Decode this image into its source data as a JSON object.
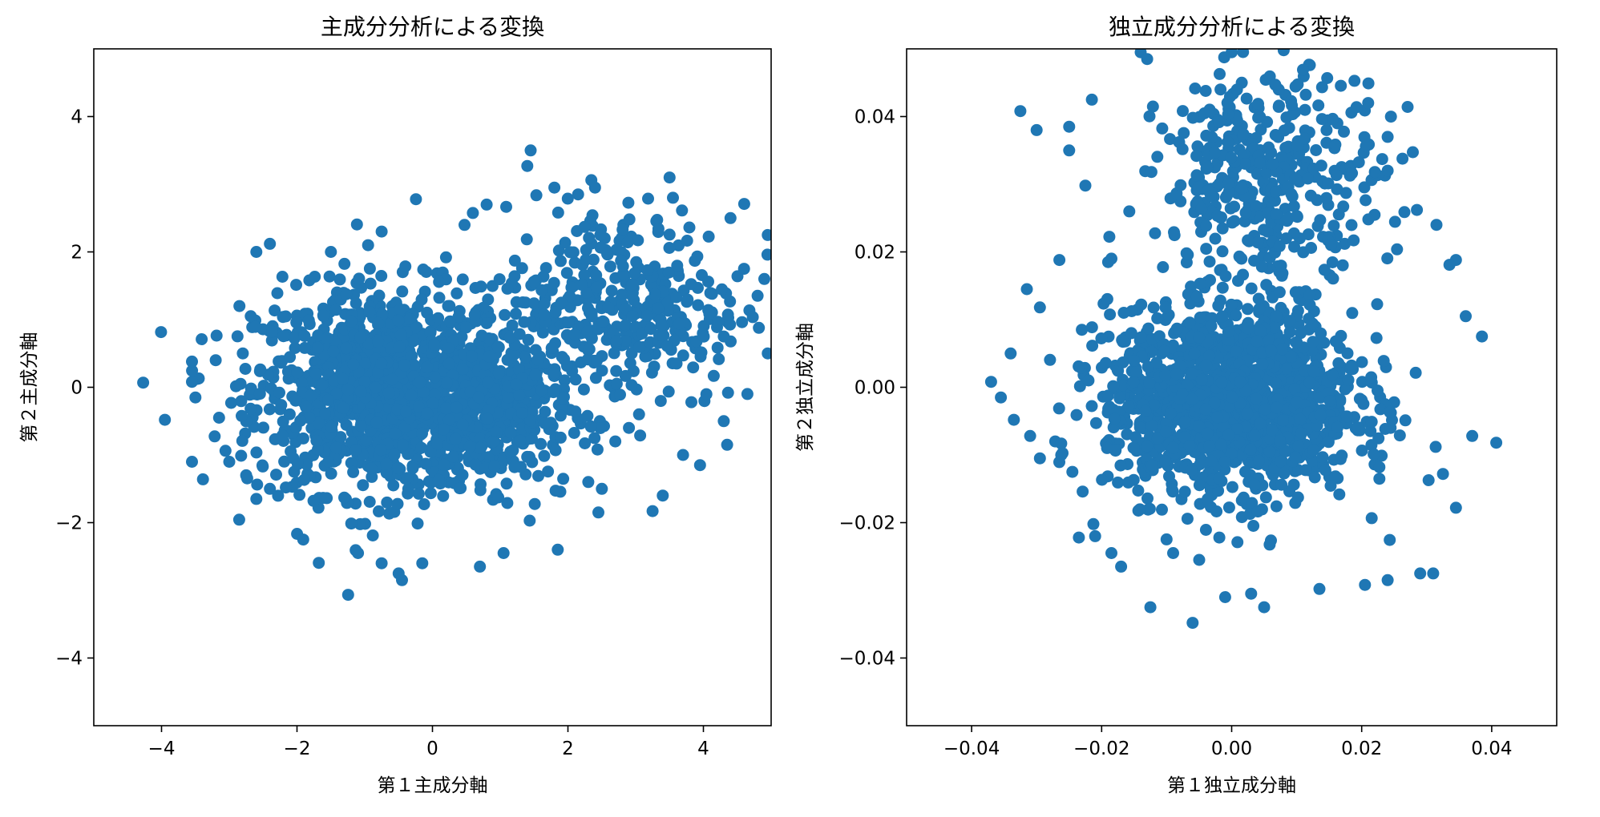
{
  "colors": {
    "marker": "#1f77b4",
    "axis": "#000000",
    "background": "#ffffff"
  },
  "chart_data": [
    {
      "type": "scatter",
      "title": "主成分分析による変換",
      "xlabel": "第１主成分軸",
      "ylabel": "第２主成分軸",
      "xlim": [
        -5,
        5
      ],
      "ylim": [
        -5,
        5
      ],
      "xticks": [
        -4,
        -2,
        0,
        2,
        4
      ],
      "yticks": [
        -4,
        -2,
        0,
        2,
        4
      ],
      "xtick_labels": [
        "−4",
        "−2",
        "0",
        "2",
        "4"
      ],
      "ytick_labels": [
        "−4",
        "−2",
        "0",
        "2",
        "4"
      ],
      "grid": false,
      "legend": "none",
      "clusters": [
        {
          "cx": -0.7,
          "cy": -0.05,
          "sx": 0.95,
          "sy": 0.75,
          "n": 1200
        },
        {
          "cx": 0.9,
          "cy": -0.35,
          "sx": 0.55,
          "sy": 0.55,
          "n": 350
        },
        {
          "cx": 2.8,
          "cy": 1.2,
          "sx": 0.9,
          "sy": 0.75,
          "n": 380
        }
      ],
      "points": [
        [
          -3.95,
          -0.48
        ],
        [
          -3.55,
          -1.1
        ],
        [
          -3.55,
          0.38
        ],
        [
          -3.55,
          0.08
        ],
        [
          -3.5,
          -0.15
        ],
        [
          -3.2,
          0.4
        ],
        [
          -3.15,
          -0.45
        ],
        [
          -3.0,
          -1.1
        ],
        [
          -2.75,
          -1.3
        ],
        [
          -2.6,
          -1.65
        ],
        [
          -2.4,
          -1.5
        ],
        [
          -2.85,
          1.2
        ],
        [
          -2.8,
          0.5
        ],
        [
          -2.6,
          2.0
        ],
        [
          -2.4,
          2.12
        ],
        [
          -1.5,
          2.0
        ],
        [
          -0.95,
          2.1
        ],
        [
          -0.75,
          2.3
        ],
        [
          0.2,
          1.92
        ],
        [
          0.7,
          -2.65
        ],
        [
          -0.45,
          -2.85
        ],
        [
          -0.5,
          -2.75
        ],
        [
          -0.75,
          -2.6
        ],
        [
          -0.15,
          -2.6
        ],
        [
          -1.1,
          -2.45
        ],
        [
          1.85,
          -2.4
        ],
        [
          1.05,
          -2.45
        ],
        [
          1.45,
          3.5
        ],
        [
          1.4,
          3.27
        ],
        [
          0.8,
          2.7
        ],
        [
          1.8,
          2.95
        ],
        [
          2.15,
          2.85
        ],
        [
          2.4,
          2.95
        ],
        [
          3.5,
          3.1
        ],
        [
          4.4,
          2.5
        ],
        [
          4.95,
          2.25
        ],
        [
          3.55,
          2.8
        ],
        [
          4.6,
          1.75
        ],
        [
          4.3,
          0.75
        ],
        [
          4.95,
          0.5
        ],
        [
          4.9,
          1.6
        ],
        [
          4.65,
          -0.1
        ],
        [
          4.3,
          -0.5
        ],
        [
          4.35,
          -0.85
        ],
        [
          3.95,
          -1.15
        ],
        [
          3.7,
          -1.0
        ],
        [
          3.4,
          -1.6
        ],
        [
          3.25,
          -1.83
        ],
        [
          3.05,
          -0.4
        ],
        [
          2.9,
          -0.6
        ],
        [
          2.45,
          -1.85
        ],
        [
          2.3,
          -1.4
        ],
        [
          2.5,
          -1.5
        ],
        [
          2.7,
          -0.8
        ]
      ]
    },
    {
      "type": "scatter",
      "title": "独立成分分析による変換",
      "xlabel": "第１独立成分軸",
      "ylabel": "第２独立成分軸",
      "xlim": [
        -0.05,
        0.05
      ],
      "ylim": [
        -0.05,
        0.05
      ],
      "xticks": [
        -0.04,
        -0.02,
        0.0,
        0.02,
        0.04
      ],
      "yticks": [
        -0.04,
        -0.02,
        0.0,
        0.02,
        0.04
      ],
      "xtick_labels": [
        "−0.04",
        "−0.02",
        "0.00",
        "0.02",
        "0.04"
      ],
      "ytick_labels": [
        "−0.04",
        "−0.02",
        "0.00",
        "0.02",
        "0.04"
      ],
      "grid": false,
      "legend": "none",
      "clusters": [
        {
          "cx": 0.0,
          "cy": -0.002,
          "sx": 0.0095,
          "sy": 0.0068,
          "n": 1550
        },
        {
          "cx": 0.006,
          "cy": 0.031,
          "sx": 0.0085,
          "sy": 0.0075,
          "n": 380
        }
      ],
      "points": [
        [
          -0.0325,
          0.0408
        ],
        [
          -0.03,
          0.038
        ],
        [
          -0.025,
          0.0385
        ],
        [
          -0.025,
          0.035
        ],
        [
          -0.0225,
          0.0298
        ],
        [
          -0.0215,
          0.0425
        ],
        [
          -0.014,
          0.0495
        ],
        [
          -0.013,
          0.0485
        ],
        [
          0.0,
          0.0495
        ],
        [
          0.008,
          0.0498
        ],
        [
          0.021,
          0.042
        ],
        [
          0.024,
          0.037
        ],
        [
          0.024,
          0.032
        ],
        [
          0.0285,
          0.0262
        ],
        [
          0.0315,
          0.024
        ],
        [
          0.0345,
          0.0188
        ],
        [
          0.0335,
          0.0181
        ],
        [
          0.036,
          0.0105
        ],
        [
          0.0385,
          0.0075
        ],
        [
          0.037,
          -0.0072
        ],
        [
          0.0345,
          -0.0178
        ],
        [
          0.0325,
          -0.0128
        ],
        [
          0.031,
          -0.0275
        ],
        [
          0.029,
          -0.0275
        ],
        [
          0.024,
          -0.0285
        ],
        [
          0.0205,
          -0.0292
        ],
        [
          0.0135,
          -0.0298
        ],
        [
          0.005,
          -0.0325
        ],
        [
          0.003,
          -0.0305
        ],
        [
          -0.001,
          -0.031
        ],
        [
          -0.005,
          -0.0255
        ],
        [
          -0.006,
          -0.0348
        ],
        [
          -0.009,
          -0.0245
        ],
        [
          -0.0125,
          -0.0325
        ],
        [
          -0.017,
          -0.0265
        ],
        [
          -0.0185,
          -0.0245
        ],
        [
          -0.0235,
          -0.0222
        ],
        [
          -0.021,
          -0.022
        ],
        [
          -0.0245,
          -0.0125
        ],
        [
          -0.0295,
          -0.0105
        ],
        [
          -0.031,
          -0.0072
        ],
        [
          -0.0335,
          -0.0048
        ],
        [
          -0.0355,
          -0.0015
        ],
        [
          -0.037,
          0.0008
        ],
        [
          -0.0315,
          0.0145
        ],
        [
          -0.0295,
          0.0118
        ],
        [
          -0.0265,
          0.0188
        ],
        [
          -0.019,
          0.0185
        ],
        [
          -0.0185,
          0.019
        ],
        [
          -0.034,
          0.005
        ]
      ]
    }
  ]
}
